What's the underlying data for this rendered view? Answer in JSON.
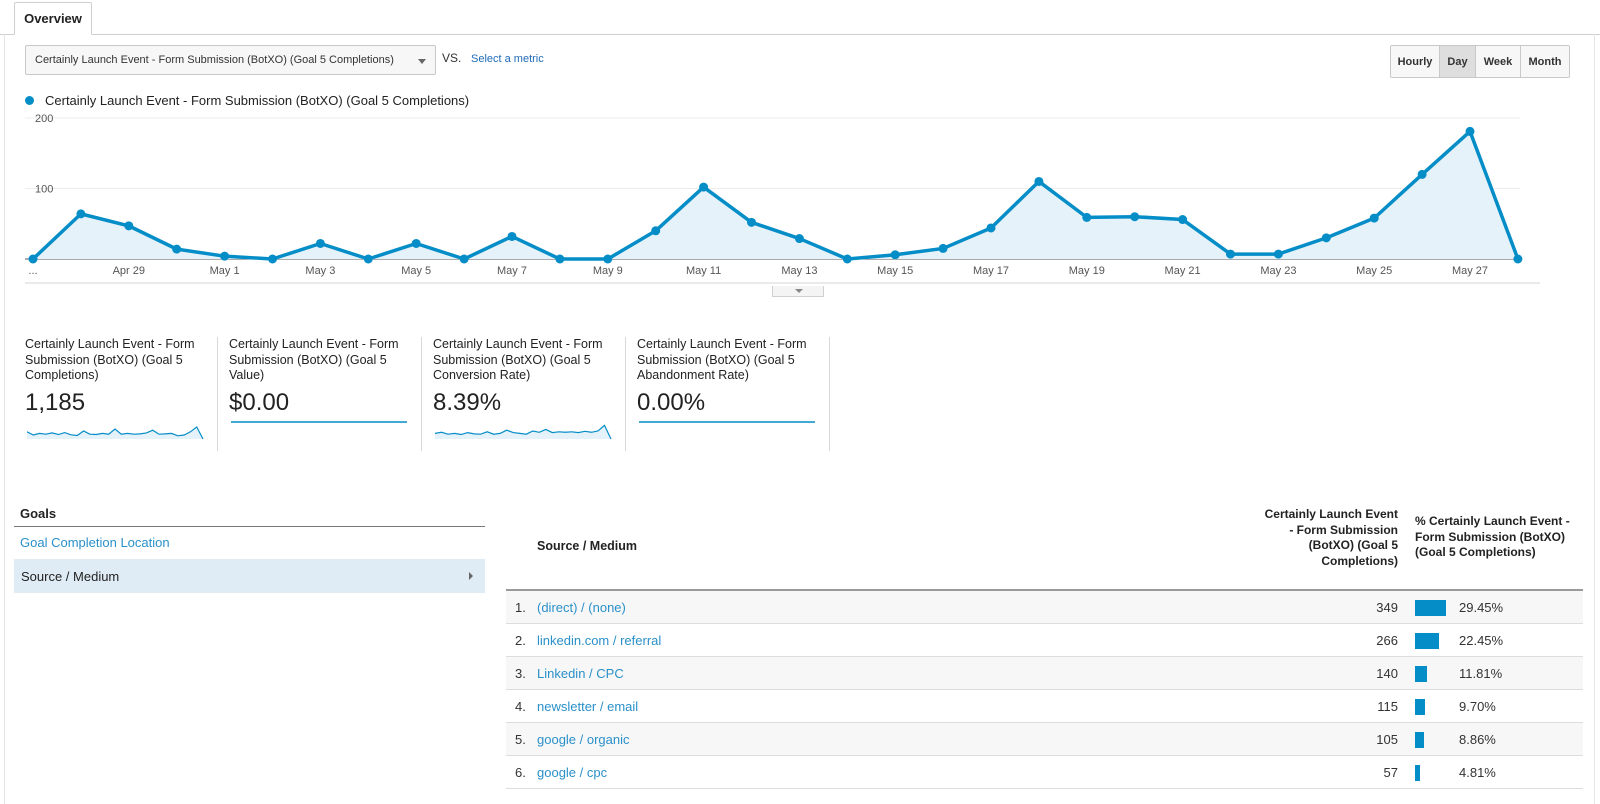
{
  "tabs": {
    "overview": "Overview"
  },
  "metric_selector": {
    "value": "Certainly Launch Event - Form Submission (BotXO) (Goal 5 Completions)",
    "vs": "VS.",
    "select_metric": "Select a metric"
  },
  "period_buttons": [
    {
      "label": "Hourly",
      "active": false
    },
    {
      "label": "Day",
      "active": true
    },
    {
      "label": "Week",
      "active": false
    },
    {
      "label": "Month",
      "active": false
    }
  ],
  "chart_data": {
    "type": "area",
    "series": [
      {
        "name": "Certainly Launch Event - Form Submission (BotXO) (Goal 5 Completions)",
        "values": [
          0,
          64,
          47,
          14,
          4,
          0,
          22,
          0,
          22,
          0,
          32,
          0,
          0,
          40,
          102,
          52,
          29,
          0,
          6,
          15,
          44,
          110,
          59,
          60,
          56,
          7,
          7,
          30,
          58,
          120,
          181,
          0
        ]
      }
    ],
    "x_tick_labels": [
      "...",
      "Apr 29",
      "May 1",
      "May 3",
      "May 5",
      "May 7",
      "May 9",
      "May 11",
      "May 13",
      "May 15",
      "May 17",
      "May 19",
      "May 21",
      "May 23",
      "May 25",
      "May 27"
    ],
    "y_tick_labels": [
      "200",
      "100"
    ],
    "ylim": [
      0,
      200
    ],
    "grid": true,
    "color": "#058dc7"
  },
  "scorecards": [
    {
      "title": "Certainly Launch Event - Form Submission (BotXO) (Goal 5 Completions)",
      "value": "1,185",
      "spark": [
        0.45,
        0.25,
        0.35,
        0.3,
        0.38,
        0.28,
        0.4,
        0.26,
        0.22,
        0.5,
        0.3,
        0.28,
        0.35,
        0.3,
        0.62,
        0.3,
        0.35,
        0.3,
        0.32,
        0.38,
        0.55,
        0.3,
        0.32,
        0.35,
        0.2,
        0.25,
        0.45,
        0.75,
        0.0
      ]
    },
    {
      "title": "Certainly Launch Event - Form Submission (BotXO) (Goal 5 Value)",
      "value": "$0.00",
      "spark": []
    },
    {
      "title": "Certainly Launch Event - Form Submission (BotXO) (Goal 5 Conversion Rate)",
      "value": "8.39%",
      "spark": [
        0.35,
        0.42,
        0.3,
        0.35,
        0.28,
        0.4,
        0.32,
        0.3,
        0.45,
        0.3,
        0.35,
        0.55,
        0.4,
        0.35,
        0.3,
        0.5,
        0.42,
        0.6,
        0.4,
        0.45,
        0.42,
        0.45,
        0.4,
        0.48,
        0.42,
        0.5,
        0.85,
        0.0
      ]
    },
    {
      "title": "Certainly Launch Event - Form Submission (BotXO) (Goal 5 Abandonment Rate)",
      "value": "0.00%",
      "spark": []
    }
  ],
  "goals_panel": {
    "title": "Goals",
    "items": [
      "Goal Completion Location",
      "Source / Medium"
    ]
  },
  "table": {
    "headers": {
      "source": "Source / Medium",
      "count": "Certainly Launch Event - Form Submission (BotXO) (Goal 5 Completions)",
      "percent": "% Certainly Launch Event - Form Submission (BotXO) (Goal 5 Completions)"
    },
    "rows": [
      {
        "index": "1.",
        "source": "(direct) / (none)",
        "count": "349",
        "percent": "29.45%",
        "share": 0.2945
      },
      {
        "index": "2.",
        "source": "linkedin.com / referral",
        "count": "266",
        "percent": "22.45%",
        "share": 0.2245
      },
      {
        "index": "3.",
        "source": "Linkedin / CPC",
        "count": "140",
        "percent": "11.81%",
        "share": 0.1181
      },
      {
        "index": "4.",
        "source": "newsletter / email",
        "count": "115",
        "percent": "9.70%",
        "share": 0.097
      },
      {
        "index": "5.",
        "source": "google / organic",
        "count": "105",
        "percent": "8.86%",
        "share": 0.0886
      },
      {
        "index": "6.",
        "source": "google / cpc",
        "count": "57",
        "percent": "4.81%",
        "share": 0.0481
      }
    ]
  }
}
